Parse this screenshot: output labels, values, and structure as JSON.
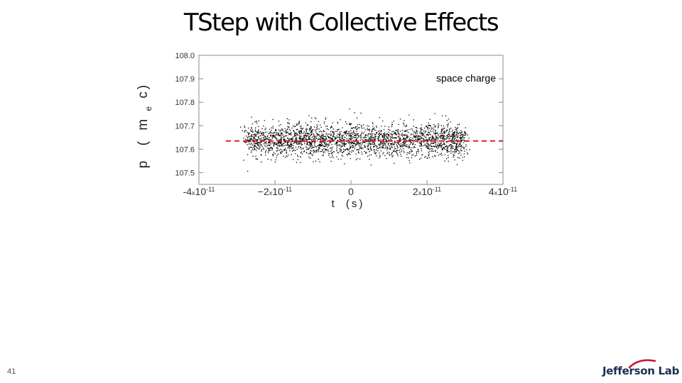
{
  "slide": {
    "title": "TStep with Collective Effects",
    "page_number": "41",
    "logo_text": "Jefferson Lab"
  },
  "colors": {
    "points": "#000000",
    "mean_line": "#e31a1c",
    "axis": "#888888",
    "logo": "#1c2e54",
    "logo_accent": "#c8102e"
  },
  "chart_data": {
    "type": "scatter",
    "title": "",
    "annotation": "space charge",
    "xlabel_main": "t",
    "xlabel_unit": "(s)",
    "ylabel_main": "p",
    "ylabel_paren_open": "(",
    "ylabel_unit_main": "m",
    "ylabel_unit_sub": "e",
    "ylabel_unit_end": "c)",
    "xlim": [
      -4e-11,
      4e-11
    ],
    "ylim": [
      107.45,
      108.0
    ],
    "x_ticks": [
      {
        "value": -4e-11,
        "mant": "-4",
        "times": "x",
        "base": "10",
        "exp": "-11"
      },
      {
        "value": -2e-11,
        "mant": "−2",
        "times": "x",
        "base": "10",
        "exp": "-11"
      },
      {
        "value": 0,
        "mant": "0",
        "times": "",
        "base": "",
        "exp": ""
      },
      {
        "value": 2e-11,
        "mant": "2",
        "times": "x",
        "base": "10",
        "exp": "-11"
      },
      {
        "value": 4e-11,
        "mant": "4",
        "times": "x",
        "base": "10",
        "exp": "-11"
      }
    ],
    "y_ticks": [
      {
        "value": 108.0,
        "label": "108.0"
      },
      {
        "value": 107.9,
        "label": "107.9"
      },
      {
        "value": 107.8,
        "label": "107.8"
      },
      {
        "value": 107.7,
        "label": "107.7"
      },
      {
        "value": 107.6,
        "label": "107.6"
      },
      {
        "value": 107.5,
        "label": "107.5"
      }
    ],
    "distribution": {
      "t_range": [
        -2.75e-11,
        3e-11
      ],
      "p_mean": 107.64,
      "p_spread": 0.035,
      "point_count": 2600
    },
    "mean_line": {
      "y": 107.635,
      "style": "dashed"
    },
    "grid": false,
    "legend": "none"
  }
}
